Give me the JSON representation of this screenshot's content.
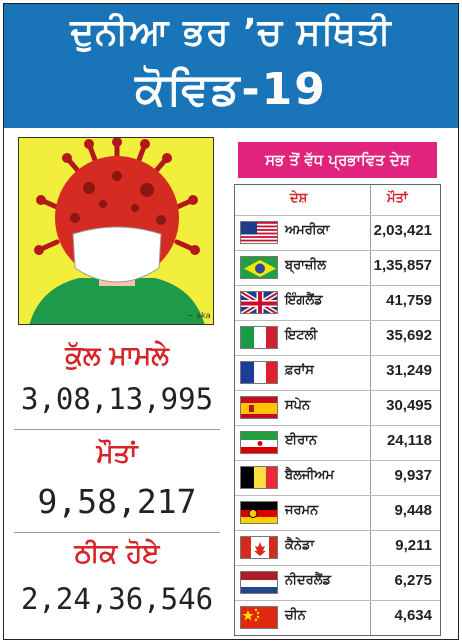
{
  "header": {
    "title_line1": "ਦੁਨੀਆ ਭਰ ’ਚ ਸਥਿਤੀ",
    "title_line2": "ਕੋਵਿਡ-19",
    "background_color": "#1a75b8"
  },
  "illustration": {
    "description_icon": "virus-masked-person-icon",
    "artist_signature": "~ aka"
  },
  "stats": [
    {
      "label": "ਕੁੱਲ ਮਾਮਲੇ",
      "value": "3,08,13,995"
    },
    {
      "label": "ਮੌਤਾਂ",
      "value": "9,58,217"
    },
    {
      "label": "ਠੀਕ ਹੋਏ",
      "value": "2,24,36,546"
    }
  ],
  "table": {
    "badge": "ਸਭ ਤੋਂ ਵੱਧ ਪ੍ਰਭਾਵਿਤ ਦੇਸ਼",
    "badge_color": "#e0247d",
    "header_country": "ਦੇਸ਼",
    "header_deaths": "ਮੌਤਾਂ",
    "rows": [
      {
        "country": "ਅਮਰੀਕਾ",
        "deaths": "2,03,421",
        "flag": "usa-flag-icon"
      },
      {
        "country": "ਬ੍ਰਾਜ਼ੀਲ",
        "deaths": "1,35,857",
        "flag": "brazil-flag-icon"
      },
      {
        "country": "ਇੰਗਲੈਂਡ",
        "deaths": "41,759",
        "flag": "uk-flag-icon"
      },
      {
        "country": "ਇਟਲੀ",
        "deaths": "35,692",
        "flag": "italy-flag-icon"
      },
      {
        "country": "ਫ਼ਰਾਂਸ",
        "deaths": "31,249",
        "flag": "france-flag-icon"
      },
      {
        "country": "ਸਪੇਨ",
        "deaths": "30,495",
        "flag": "spain-flag-icon"
      },
      {
        "country": "ਈਰਾਨ",
        "deaths": "24,118",
        "flag": "iran-flag-icon"
      },
      {
        "country": "ਬੈਲਜੀਅਮ",
        "deaths": "9,937",
        "flag": "belgium-flag-icon"
      },
      {
        "country": "ਜਰਮਨ",
        "deaths": "9,448",
        "flag": "germany-flag-icon"
      },
      {
        "country": "ਕੈਨੇਡਾ",
        "deaths": "9,211",
        "flag": "canada-flag-icon"
      },
      {
        "country": "ਨੀਦਰਲੈਂਡ",
        "deaths": "6,275",
        "flag": "netherlands-flag-icon"
      },
      {
        "country": "ਚੀਨ",
        "deaths": "4,634",
        "flag": "china-flag-icon"
      }
    ]
  }
}
